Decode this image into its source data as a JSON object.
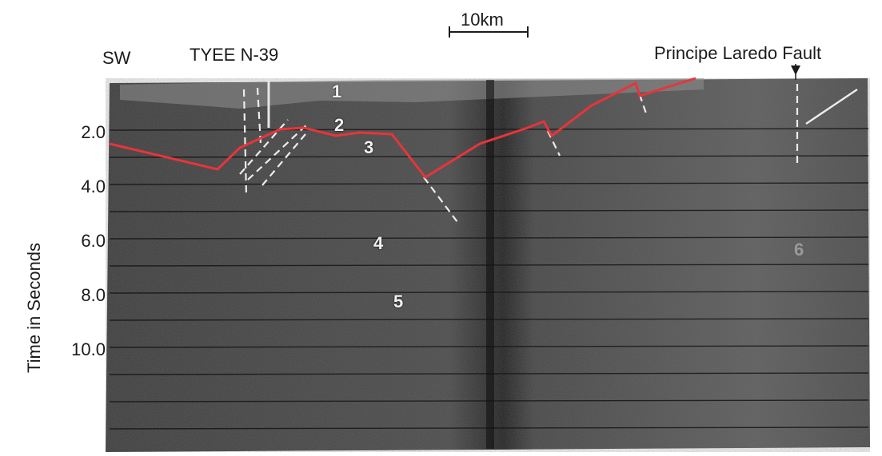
{
  "labels": {
    "sw": "SW",
    "well": "TYEE N-39",
    "scale": "10km",
    "fault": "Principe Laredo Fault",
    "y_axis": "Time in Seconds"
  },
  "y_ticks": [
    "2.0",
    "4.0",
    "6.0",
    "8.0",
    "10.0"
  ],
  "units": [
    "1",
    "2",
    "3",
    "4",
    "5",
    "6"
  ],
  "colors": {
    "horizon": "#e8343a",
    "seismic_dark": "#2a2a2a",
    "seismic_light": "#6c6c6c"
  }
}
